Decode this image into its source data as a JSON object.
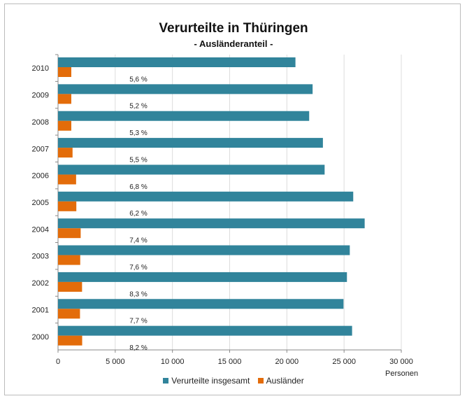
{
  "chart_data": {
    "type": "bar",
    "orientation": "horizontal",
    "title": "Verurteilte in Thüringen",
    "subtitle": "- Ausländeranteil -",
    "xlabel": "Personen",
    "xlim": [
      0,
      30000
    ],
    "xticks": [
      "0",
      "5 000",
      "10 000",
      "15 000",
      "20 000",
      "25 000",
      "30 000"
    ],
    "grid": true,
    "legend_position": "bottom",
    "categories": [
      "2010",
      "2009",
      "2008",
      "2007",
      "2006",
      "2005",
      "2004",
      "2003",
      "2002",
      "2001",
      "2000"
    ],
    "series": [
      {
        "name": "Verurteilte insgesamt",
        "color": "#31849b",
        "values": [
          20750,
          22250,
          21950,
          23150,
          23300,
          25800,
          26800,
          25500,
          25250,
          24950,
          25700
        ]
      },
      {
        "name": "Ausländer",
        "color": "#e36c0a",
        "values": [
          1160,
          1160,
          1160,
          1270,
          1580,
          1600,
          1980,
          1940,
          2100,
          1920,
          2110
        ]
      }
    ],
    "data_labels": [
      "5,6 %",
      "5,2 %",
      "5,3 %",
      "5,5 %",
      "6,8 %",
      "6,2 %",
      "7,4 %",
      "7,6 %",
      "8,3 %",
      "7,7 %",
      "8,2 %"
    ]
  }
}
